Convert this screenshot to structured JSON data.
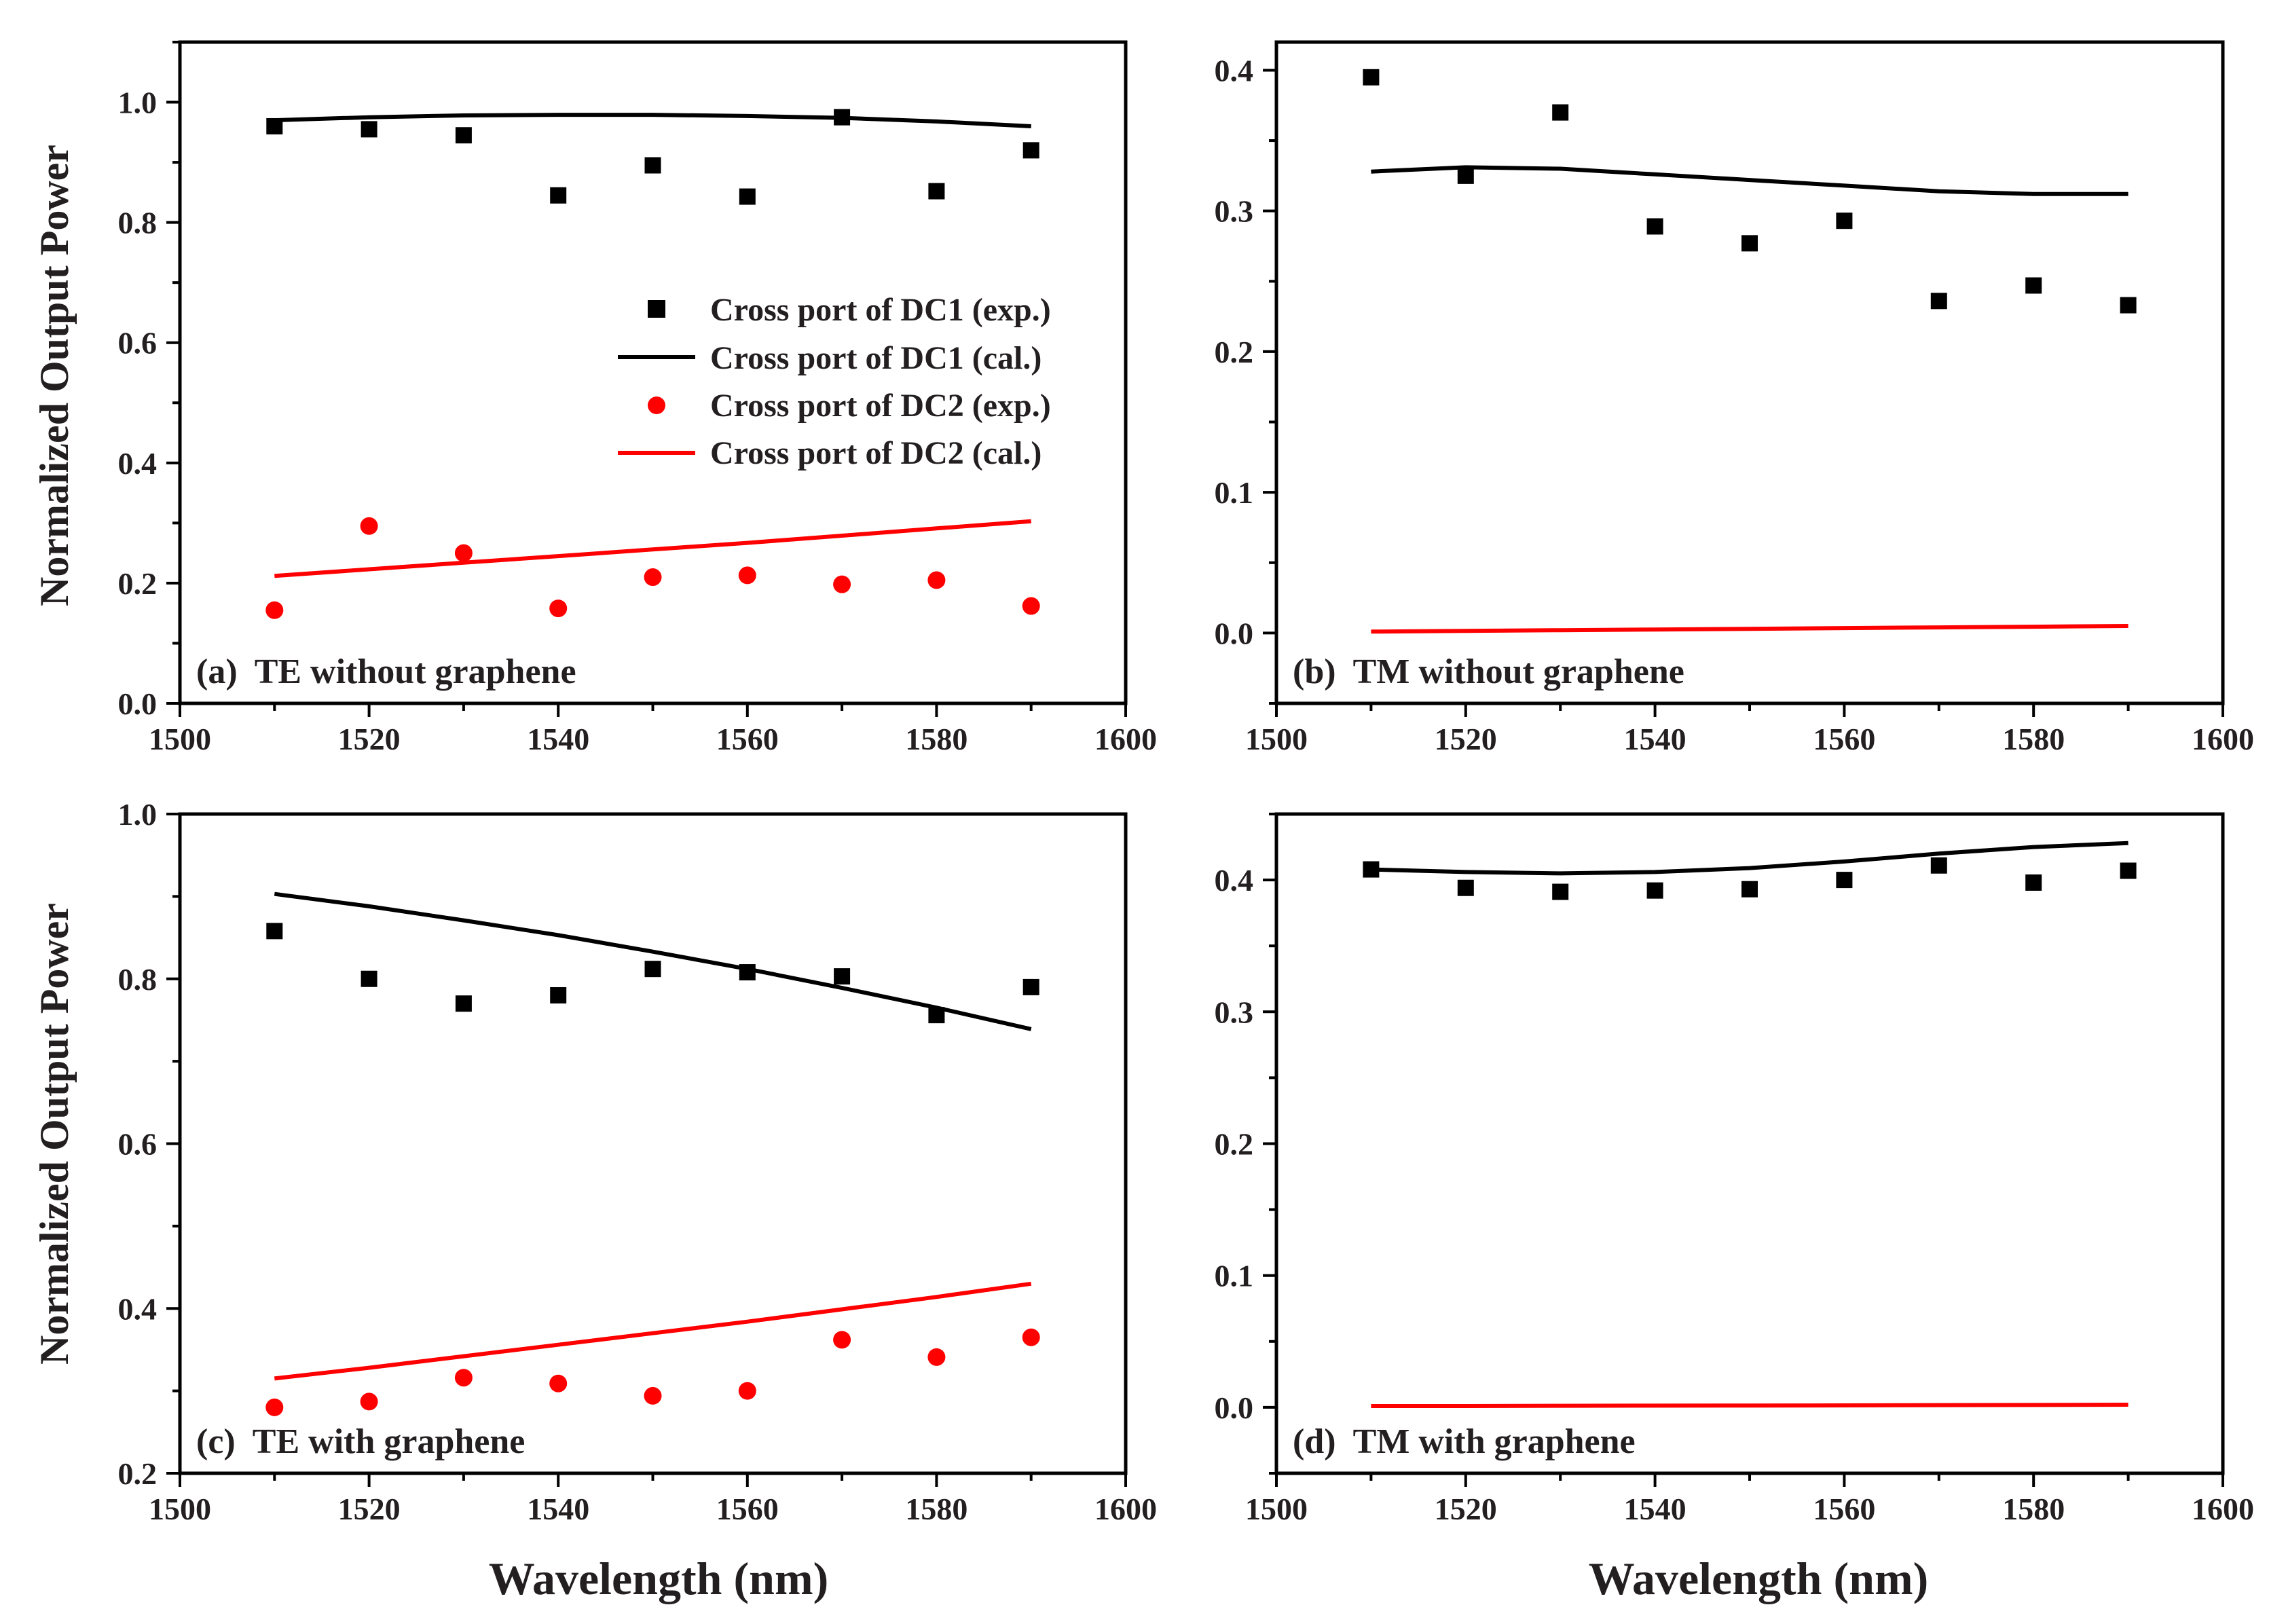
{
  "figure": {
    "y_axis_title": "Normalized Output Power",
    "x_axis_title": "Wavelength (nm)",
    "legend": [
      {
        "label": "Cross port of DC1 (exp.)",
        "color": "#000000",
        "marker": "square"
      },
      {
        "label": "Cross port of DC1 (cal.)",
        "color": "#000000",
        "marker": "line"
      },
      {
        "label": "Cross port of DC2 (exp.)",
        "color": "#ff0000",
        "marker": "circle"
      },
      {
        "label": "Cross port of DC2 (cal.)",
        "color": "#ff0000",
        "marker": "line"
      }
    ]
  },
  "chart_data": [
    {
      "type": "scatter",
      "title": "(a)  TE without graphene",
      "xlabel": "Wavelength (nm)",
      "ylabel": "Normalized Output Power",
      "xlim": [
        1500,
        1600
      ],
      "ylim": [
        0,
        1.1
      ],
      "xticks": [
        1500,
        1520,
        1540,
        1560,
        1580,
        1600
      ],
      "yticks": [
        0.0,
        0.2,
        0.4,
        0.6,
        0.8,
        1.0
      ],
      "x": [
        1510,
        1520,
        1530,
        1540,
        1550,
        1560,
        1570,
        1580,
        1590
      ],
      "series": [
        {
          "name": "Cross port of DC1 (exp.)",
          "kind": "square",
          "color": "#000000",
          "values": [
            0.96,
            0.955,
            0.945,
            0.845,
            0.895,
            0.843,
            0.975,
            0.852,
            0.92
          ]
        },
        {
          "name": "Cross port of DC1 (cal.)",
          "kind": "line",
          "color": "#000000",
          "values": [
            0.97,
            0.975,
            0.978,
            0.979,
            0.979,
            0.977,
            0.974,
            0.968,
            0.96
          ]
        },
        {
          "name": "Cross port of DC2 (exp.)",
          "kind": "circle",
          "color": "#ff0000",
          "values": [
            0.155,
            0.295,
            0.25,
            0.158,
            0.21,
            0.213,
            0.198,
            0.205,
            0.162
          ]
        },
        {
          "name": "Cross port of DC2 (cal.)",
          "kind": "line",
          "color": "#ff0000",
          "values": [
            0.212,
            0.223,
            0.234,
            0.245,
            0.256,
            0.267,
            0.279,
            0.291,
            0.303
          ]
        }
      ]
    },
    {
      "type": "scatter",
      "title": "(b)  TM without graphene",
      "xlabel": "Wavelength (nm)",
      "ylabel": "",
      "xlim": [
        1500,
        1600
      ],
      "ylim": [
        -0.05,
        0.42
      ],
      "xticks": [
        1500,
        1520,
        1540,
        1560,
        1580,
        1600
      ],
      "yticks": [
        0.0,
        0.1,
        0.2,
        0.3,
        0.4
      ],
      "x": [
        1510,
        1520,
        1530,
        1540,
        1550,
        1560,
        1570,
        1580,
        1590
      ],
      "series": [
        {
          "name": "Cross port of DC1 (exp.)",
          "kind": "square",
          "color": "#000000",
          "values": [
            0.395,
            0.325,
            0.37,
            0.289,
            0.277,
            0.293,
            0.236,
            0.247,
            0.233
          ]
        },
        {
          "name": "Cross port of DC1 (cal.)",
          "kind": "line",
          "color": "#000000",
          "values": [
            0.328,
            0.331,
            0.33,
            0.326,
            0.322,
            0.318,
            0.314,
            0.312,
            0.312
          ]
        },
        {
          "name": "Cross port of DC2 (cal.)",
          "kind": "line",
          "color": "#ff0000",
          "values": [
            0.001,
            0.0015,
            0.002,
            0.0025,
            0.003,
            0.0035,
            0.004,
            0.0045,
            0.005
          ]
        }
      ]
    },
    {
      "type": "scatter",
      "title": "(c)  TE with graphene",
      "xlabel": "Wavelength (nm)",
      "ylabel": "Normalized Output Power",
      "xlim": [
        1500,
        1600
      ],
      "ylim": [
        0.2,
        1.0
      ],
      "xticks": [
        1500,
        1520,
        1540,
        1560,
        1580,
        1600
      ],
      "yticks": [
        0.2,
        0.4,
        0.6,
        0.8,
        1.0
      ],
      "x": [
        1510,
        1520,
        1530,
        1540,
        1550,
        1560,
        1570,
        1580,
        1590
      ],
      "series": [
        {
          "name": "Cross port of DC1 (exp.)",
          "kind": "square",
          "color": "#000000",
          "values": [
            0.858,
            0.8,
            0.77,
            0.78,
            0.812,
            0.808,
            0.803,
            0.756,
            0.79
          ]
        },
        {
          "name": "Cross port of DC1 (cal.)",
          "kind": "line",
          "color": "#000000",
          "values": [
            0.903,
            0.888,
            0.871,
            0.853,
            0.833,
            0.812,
            0.789,
            0.765,
            0.739
          ]
        },
        {
          "name": "Cross port of DC2 (exp.)",
          "kind": "circle",
          "color": "#ff0000",
          "values": [
            0.28,
            0.287,
            0.316,
            0.309,
            0.294,
            0.3,
            0.362,
            0.341,
            0.365
          ]
        },
        {
          "name": "Cross port of DC2 (cal.)",
          "kind": "line",
          "color": "#ff0000",
          "values": [
            0.315,
            0.328,
            0.342,
            0.356,
            0.37,
            0.384,
            0.399,
            0.414,
            0.43
          ]
        }
      ]
    },
    {
      "type": "scatter",
      "title": "(d)  TM with graphene",
      "xlabel": "Wavelength (nm)",
      "ylabel": "",
      "xlim": [
        1500,
        1600
      ],
      "ylim": [
        -0.05,
        0.45
      ],
      "xticks": [
        1500,
        1520,
        1540,
        1560,
        1580,
        1600
      ],
      "yticks": [
        0.0,
        0.1,
        0.2,
        0.3,
        0.4
      ],
      "x": [
        1510,
        1520,
        1530,
        1540,
        1550,
        1560,
        1570,
        1580,
        1590
      ],
      "series": [
        {
          "name": "Cross port of DC1 (exp.)",
          "kind": "square",
          "color": "#000000",
          "values": [
            0.408,
            0.394,
            0.391,
            0.392,
            0.393,
            0.4,
            0.411,
            0.398,
            0.407
          ]
        },
        {
          "name": "Cross port of DC1 (cal.)",
          "kind": "line",
          "color": "#000000",
          "values": [
            0.408,
            0.406,
            0.405,
            0.406,
            0.409,
            0.414,
            0.42,
            0.425,
            0.428
          ]
        },
        {
          "name": "Cross port of DC2 (cal.)",
          "kind": "line",
          "color": "#ff0000",
          "values": [
            0.001,
            0.001,
            0.0012,
            0.0013,
            0.0014,
            0.0015,
            0.0017,
            0.0018,
            0.002
          ]
        }
      ]
    }
  ]
}
